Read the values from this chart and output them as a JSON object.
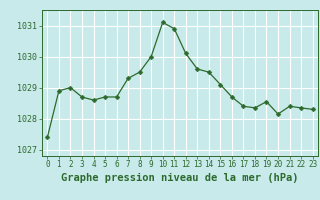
{
  "x": [
    0,
    1,
    2,
    3,
    4,
    5,
    6,
    7,
    8,
    9,
    10,
    11,
    12,
    13,
    14,
    15,
    16,
    17,
    18,
    19,
    20,
    21,
    22,
    23
  ],
  "y": [
    1027.4,
    1028.9,
    1029.0,
    1028.7,
    1028.6,
    1028.7,
    1028.7,
    1029.3,
    1029.5,
    1030.0,
    1031.1,
    1030.9,
    1030.1,
    1029.6,
    1029.5,
    1029.1,
    1028.7,
    1028.4,
    1028.35,
    1028.55,
    1028.15,
    1028.4,
    1028.35,
    1028.3
  ],
  "line_color": "#2d6a2d",
  "marker": "D",
  "marker_size": 2.5,
  "bg_color": "#c8eaea",
  "grid_color": "#ffffff",
  "spine_color": "#2d6a2d",
  "title": "Graphe pression niveau de la mer (hPa)",
  "title_fontsize": 7.5,
  "title_color": "#2d6a2d",
  "tick_label_color": "#2d6a2d",
  "tick_fontsize": 5.5,
  "ylim": [
    1026.8,
    1031.5
  ],
  "yticks": [
    1027,
    1028,
    1029,
    1030,
    1031
  ],
  "xlim": [
    -0.5,
    23.5
  ],
  "xticks": [
    0,
    1,
    2,
    3,
    4,
    5,
    6,
    7,
    8,
    9,
    10,
    11,
    12,
    13,
    14,
    15,
    16,
    17,
    18,
    19,
    20,
    21,
    22,
    23
  ]
}
